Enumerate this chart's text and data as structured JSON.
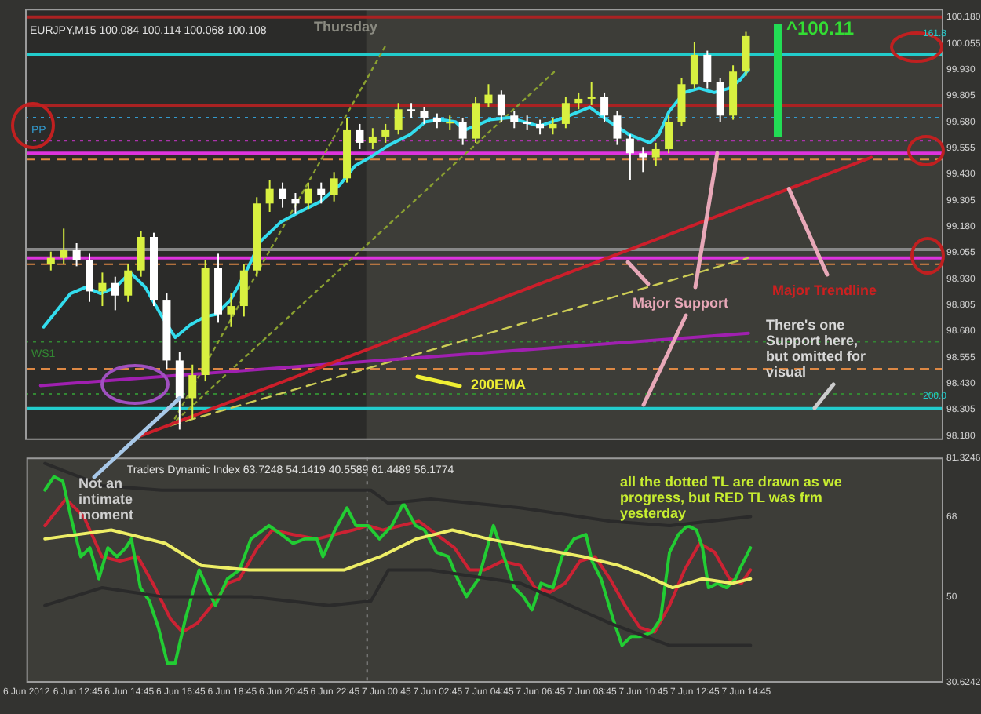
{
  "chart_data": [
    {
      "type": "candlestick",
      "title": "EURJPY,M15 100.084 100.114 100.068 100.108",
      "x": [
        "2012-06-06T11:45",
        "2012-06-06T12:15",
        "2012-06-06T12:45",
        "2012-06-06T13:15",
        "2012-06-06T13:45",
        "2012-06-06T14:15",
        "2012-06-06T14:45",
        "2012-06-06T15:15",
        "2012-06-06T15:45",
        "2012-06-06T16:15",
        "2012-06-06T16:45",
        "2012-06-06T17:15",
        "2012-06-06T17:45",
        "2012-06-06T18:15",
        "2012-06-06T18:45",
        "2012-06-06T19:15",
        "2012-06-06T19:45",
        "2012-06-06T20:15",
        "2012-06-06T20:45",
        "2012-06-06T21:15",
        "2012-06-06T21:45",
        "2012-06-06T22:15",
        "2012-06-06T22:45",
        "2012-06-06T23:15",
        "2012-06-06T23:45",
        "2012-06-07T00:15",
        "2012-06-07T00:45",
        "2012-06-07T01:15",
        "2012-06-07T01:45",
        "2012-06-07T02:15",
        "2012-06-07T02:45",
        "2012-06-07T03:15",
        "2012-06-07T03:45",
        "2012-06-07T04:15",
        "2012-06-07T04:45",
        "2012-06-07T05:15",
        "2012-06-07T05:45",
        "2012-06-07T06:15",
        "2012-06-07T06:45",
        "2012-06-07T07:15",
        "2012-06-07T07:45",
        "2012-06-07T08:15",
        "2012-06-07T08:45",
        "2012-06-07T09:15",
        "2012-06-07T09:45",
        "2012-06-07T10:15",
        "2012-06-07T10:45",
        "2012-06-07T11:15",
        "2012-06-07T11:45",
        "2012-06-07T12:15",
        "2012-06-07T12:45",
        "2012-06-07T13:15",
        "2012-06-07T13:45",
        "2012-06-07T14:15",
        "2012-06-07T14:45"
      ],
      "ohlc": [
        [
          99.0,
          99.06,
          98.97,
          99.03
        ],
        [
          99.03,
          99.17,
          99.0,
          99.07
        ],
        [
          99.07,
          99.1,
          98.99,
          99.02
        ],
        [
          99.02,
          99.05,
          98.82,
          98.87
        ],
        [
          98.87,
          98.96,
          98.8,
          98.91
        ],
        [
          98.91,
          98.94,
          98.78,
          98.85
        ],
        [
          98.85,
          99.0,
          98.82,
          98.97
        ],
        [
          98.97,
          99.16,
          98.94,
          99.13
        ],
        [
          99.13,
          99.15,
          98.8,
          98.83
        ],
        [
          98.83,
          98.86,
          98.5,
          98.54
        ],
        [
          98.54,
          98.58,
          98.21,
          98.36
        ],
        [
          98.36,
          98.52,
          98.26,
          98.47
        ],
        [
          98.47,
          99.02,
          98.44,
          98.98
        ],
        [
          98.98,
          99.05,
          98.72,
          98.76
        ],
        [
          98.76,
          98.86,
          98.7,
          98.8
        ],
        [
          98.8,
          99.0,
          98.75,
          98.97
        ],
        [
          98.97,
          99.32,
          98.94,
          99.29
        ],
        [
          99.29,
          99.4,
          99.25,
          99.36
        ],
        [
          99.36,
          99.39,
          99.27,
          99.31
        ],
        [
          99.31,
          99.34,
          99.24,
          99.29
        ],
        [
          99.29,
          99.39,
          99.26,
          99.36
        ],
        [
          99.36,
          99.39,
          99.29,
          99.33
        ],
        [
          99.33,
          99.44,
          99.3,
          99.41
        ],
        [
          99.41,
          99.7,
          99.39,
          99.64
        ],
        [
          99.64,
          99.67,
          99.55,
          99.58
        ],
        [
          99.58,
          99.65,
          99.55,
          99.61
        ],
        [
          99.61,
          99.67,
          99.58,
          99.64
        ],
        [
          99.64,
          99.77,
          99.62,
          99.74
        ],
        [
          99.74,
          99.77,
          99.7,
          99.73
        ],
        [
          99.73,
          99.75,
          99.67,
          99.7
        ],
        [
          99.7,
          99.72,
          99.65,
          99.68
        ],
        [
          99.68,
          99.71,
          99.64,
          99.68
        ],
        [
          99.68,
          99.7,
          99.57,
          99.6
        ],
        [
          99.6,
          99.8,
          99.58,
          99.77
        ],
        [
          99.77,
          99.86,
          99.75,
          99.81
        ],
        [
          99.81,
          99.83,
          99.68,
          99.71
        ],
        [
          99.71,
          99.73,
          99.65,
          99.68
        ],
        [
          99.68,
          99.71,
          99.64,
          99.67
        ],
        [
          99.67,
          99.69,
          99.62,
          99.65
        ],
        [
          99.65,
          99.7,
          99.62,
          99.67
        ],
        [
          99.67,
          99.8,
          99.65,
          99.77
        ],
        [
          99.77,
          99.82,
          99.74,
          99.79
        ],
        [
          99.79,
          99.87,
          99.76,
          99.8
        ],
        [
          99.8,
          99.82,
          99.68,
          99.71
        ],
        [
          99.71,
          99.73,
          99.57,
          99.6
        ],
        [
          99.6,
          99.62,
          99.4,
          99.53
        ],
        [
          99.53,
          99.56,
          99.44,
          99.51
        ],
        [
          99.51,
          99.58,
          99.47,
          99.55
        ],
        [
          99.55,
          99.71,
          99.53,
          99.68
        ],
        [
          99.68,
          99.89,
          99.66,
          99.86
        ],
        [
          99.86,
          100.06,
          99.84,
          100.0
        ],
        [
          100.0,
          100.02,
          99.84,
          99.87
        ],
        [
          99.87,
          99.89,
          99.68,
          99.71
        ],
        [
          99.71,
          99.95,
          99.69,
          99.92
        ],
        [
          99.92,
          100.11,
          99.9,
          100.09
        ]
      ],
      "colors": [
        "#d8f040",
        "#d8f040",
        "#ffffff",
        "#ffffff",
        "#d8f040",
        "#ffffff",
        "#d8f040",
        "#d8f040",
        "#ffffff",
        "#ffffff",
        "#ffffff",
        "#d8f040",
        "#d8f040",
        "#ffffff",
        "#d8f040",
        "#d8f040",
        "#d8f040",
        "#d8f040",
        "#ffffff",
        "#ffffff",
        "#d8f040",
        "#ffffff",
        "#d8f040",
        "#d8f040",
        "#ffffff",
        "#d8f040",
        "#d8f040",
        "#d8f040",
        "#ffffff",
        "#ffffff",
        "#ffffff",
        "#d8f040",
        "#ffffff",
        "#d8f040",
        "#d8f040",
        "#ffffff",
        "#ffffff",
        "#ffffff",
        "#ffffff",
        "#d8f040",
        "#d8f040",
        "#d8f040",
        "#d8f040",
        "#ffffff",
        "#ffffff",
        "#ffffff",
        "#ffffff",
        "#d8f040",
        "#d8f040",
        "#d8f040",
        "#d8f040",
        "#ffffff",
        "#ffffff",
        "#d8f040",
        "#d8f040"
      ],
      "series": [
        {
          "type": "line",
          "color": "#33ddee",
          "x": [
            "2012-06-06T11:28",
            "2012-06-06T12:31",
            "2012-06-06T13:06",
            "2012-06-06T13:41",
            "2012-06-06T14:16",
            "2012-06-06T14:50",
            "2012-06-06T15:25",
            "2012-06-06T16:01",
            "2012-06-06T16:35",
            "2012-06-06T17:10",
            "2012-06-06T17:45",
            "2012-06-06T18:10",
            "2012-06-06T18:44",
            "2012-06-06T19:19",
            "2012-06-06T19:54",
            "2012-06-06T20:40",
            "2012-06-06T21:25",
            "2012-06-06T22:14",
            "2012-06-06T22:59",
            "2012-06-06T23:34",
            "2012-06-07T00:09",
            "2012-06-07T00:54",
            "2012-06-07T01:43",
            "2012-06-07T02:18",
            "2012-06-07T02:53",
            "2012-06-07T03:28",
            "2012-06-07T03:49",
            "2012-06-07T04:13",
            "2012-06-07T04:48",
            "2012-06-07T05:33",
            "2012-06-07T06:43",
            "2012-06-07T07:42",
            "2012-06-07T08:41",
            "2012-06-07T09:27",
            "2012-06-07T10:12",
            "2012-06-07T11:01",
            "2012-06-07T11:22",
            "2012-06-07T11:46",
            "2012-06-07T12:21",
            "2012-06-07T12:56",
            "2012-06-07T13:31",
            "2012-06-07T14:06",
            "2012-06-07T14:31",
            "2012-06-07T14:51"
          ],
          "values": [
            98.7,
            98.86,
            98.89,
            98.86,
            98.89,
            98.96,
            98.89,
            98.76,
            98.65,
            98.71,
            98.75,
            98.76,
            98.83,
            98.96,
            99.11,
            99.2,
            99.25,
            99.3,
            99.38,
            99.47,
            99.51,
            99.57,
            99.62,
            99.68,
            99.69,
            99.68,
            99.64,
            99.66,
            99.69,
            99.7,
            99.66,
            99.7,
            99.75,
            99.68,
            99.62,
            99.58,
            99.62,
            99.73,
            99.82,
            99.84,
            99.82,
            99.84,
            99.88,
            99.93
          ]
        },
        {
          "type": "line",
          "color": "#cc1e2a",
          "x": [
            "2012-06-06T15:15",
            "2012-06-07T19:37"
          ],
          "values": [
            98.18,
            99.51
          ]
        },
        {
          "type": "line",
          "color": "#a020b0",
          "x": [
            "2012-06-06T11:21",
            "2012-06-07T14:51"
          ],
          "values": [
            98.42,
            98.67
          ]
        },
        {
          "type": "line",
          "color": "#8aa030",
          "line_style": "dotted",
          "x": [
            "2012-06-06T16:25",
            "2012-06-07T00:44"
          ],
          "values": [
            98.23,
            100.04
          ]
        },
        {
          "type": "line",
          "color": "#8aa030",
          "line_style": "dotted",
          "x": [
            "2012-06-06T16:25",
            "2012-06-07T07:19"
          ],
          "values": [
            98.23,
            99.92
          ]
        },
        {
          "type": "line",
          "color": "#cccc55",
          "line_style": "dashed",
          "x": [
            "2012-06-06T16:25",
            "2012-06-07T14:51"
          ],
          "values": [
            98.23,
            99.03
          ]
        }
      ],
      "xlim": [
        "2012-06-06T10:45",
        "2012-06-07T22:25"
      ],
      "ylim": [
        98.16,
        100.22
      ],
      "yticks": [
        {
          "value": 100.18,
          "label": "100.180"
        },
        {
          "value": 100.055,
          "label": "100.055"
        },
        {
          "value": 99.93,
          "label": "99.930"
        },
        {
          "value": 99.805,
          "label": "99.805"
        },
        {
          "value": 99.68,
          "label": "99.680"
        },
        {
          "value": 99.555,
          "label": "99.555"
        },
        {
          "value": 99.43,
          "label": "99.430"
        },
        {
          "value": 99.305,
          "label": "99.305"
        },
        {
          "value": 99.18,
          "label": "99.180"
        },
        {
          "value": 99.055,
          "label": "99.055"
        },
        {
          "value": 98.93,
          "label": "98.930"
        },
        {
          "value": 98.805,
          "label": "98.805"
        },
        {
          "value": 98.68,
          "label": "98.680"
        },
        {
          "value": 98.555,
          "label": "98.555"
        },
        {
          "value": 98.43,
          "label": "98.430"
        },
        {
          "value": 98.305,
          "label": "98.305"
        },
        {
          "value": 98.18,
          "label": "98.180"
        }
      ],
      "tick_labels": "y",
      "grid": false,
      "legend": false,
      "bands": [
        {
          "axis": "x",
          "from": "2012-06-06T10:45",
          "to": "2012-06-07T00:00",
          "color": "#2b2b29"
        }
      ],
      "ref_lines": [
        {
          "axis": "y",
          "value": 100.18,
          "color": "#aa2222",
          "line_style": "solid"
        },
        {
          "axis": "y",
          "value": 100.0,
          "color": "#22cccc",
          "line_style": "solid"
        },
        {
          "axis": "y",
          "value": 99.76,
          "color": "#aa2222",
          "line_style": "solid"
        },
        {
          "axis": "y",
          "value": 99.7,
          "color": "#3399cc",
          "line_style": "dotted",
          "label": "PP"
        },
        {
          "axis": "y",
          "value": 99.59,
          "color": "#aa33aa",
          "line_style": "dotted"
        },
        {
          "axis": "y",
          "value": 99.53,
          "color": "#dd33dd",
          "line_style": "solid"
        },
        {
          "axis": "y",
          "value": 99.5,
          "color": "#dd8844",
          "line_style": "dashed"
        },
        {
          "axis": "y",
          "value": 99.07,
          "color": "#888888",
          "line_style": "solid"
        },
        {
          "axis": "y",
          "value": 99.03,
          "color": "#dd33dd",
          "line_style": "solid"
        },
        {
          "axis": "y",
          "value": 99.0,
          "color": "#dd8844",
          "line_style": "dashed"
        },
        {
          "axis": "y",
          "value": 98.63,
          "color": "#338833",
          "line_style": "dotted",
          "label": "WS1"
        },
        {
          "axis": "y",
          "value": 98.5,
          "color": "#dd8844",
          "line_style": "dashed"
        },
        {
          "axis": "y",
          "value": 98.38,
          "color": "#338833",
          "line_style": "dotted"
        },
        {
          "axis": "y",
          "value": 98.31,
          "color": "#22cccc",
          "line_style": "solid"
        }
      ],
      "annotations": [
        "Thursday",
        "^100.11",
        {
          "text": "Major Support",
          "x": "2012-06-07T13:38",
          "y": 99.53
        },
        {
          "text": "Major Trendline",
          "x": "2012-06-07T16:25",
          "y": 99.36
        },
        "There's one Support here, but omitted for visual",
        "200EMA",
        {
          "text": "Not an intimate moment",
          "x": "2012-06-06T16:45",
          "y": 98.36
        },
        "161.8",
        "200.0"
      ]
    },
    {
      "type": "line",
      "title": "Traders Dynamic Index 63.7248 54.1419 40.5589 61.4489 56.1774",
      "series": [
        {
          "color": "#2a2a2a",
          "x": [
            "2012-06-06T11:28",
            "2012-06-06T13:41",
            "2012-06-06T16:01",
            "2012-06-06T19:29",
            "2012-06-06T22:31",
            "2012-06-07T00:09",
            "2012-06-07T00:50",
            "2012-06-07T02:28",
            "2012-06-07T05:58",
            "2012-06-07T09:27",
            "2012-06-07T11:46",
            "2012-06-07T14:55"
          ],
          "values": [
            80,
            75,
            74,
            74,
            74,
            74,
            71,
            72,
            70,
            67,
            66,
            68
          ]
        },
        {
          "color": "#2a2a2a",
          "x": [
            "2012-06-06T11:28",
            "2012-06-06T13:41",
            "2012-06-06T16:01",
            "2012-06-06T19:29",
            "2012-06-06T22:31",
            "2012-06-07T00:09",
            "2012-06-07T00:50",
            "2012-06-07T02:28",
            "2012-06-07T05:58",
            "2012-06-07T09:27",
            "2012-06-07T11:46",
            "2012-06-07T14:55"
          ],
          "values": [
            48,
            52,
            50,
            50,
            48,
            49,
            56,
            56,
            53,
            44,
            39,
            39
          ]
        },
        {
          "color": "#eeee66",
          "x": [
            "2012-06-06T11:28",
            "2012-06-06T14:03",
            "2012-06-06T16:09",
            "2012-06-06T17:33",
            "2012-06-06T19:25",
            "2012-06-06T21:16",
            "2012-06-06T23:07",
            "2012-06-07T00:31",
            "2012-06-07T01:55",
            "2012-06-07T03:19",
            "2012-06-07T04:43",
            "2012-06-07T06:32",
            "2012-06-07T08:24",
            "2012-06-07T09:48",
            "2012-06-07T10:44",
            "2012-06-07T11:53",
            "2012-06-07T13:03",
            "2012-06-07T14:13",
            "2012-06-07T14:55"
          ],
          "values": [
            63,
            65,
            62,
            57,
            56,
            56,
            56,
            59,
            63,
            65,
            63,
            61,
            59,
            57,
            55,
            52,
            54,
            53,
            54
          ]
        },
        {
          "color": "#22cc33",
          "x": [
            "2012-06-06T11:28",
            "2012-06-06T11:49",
            "2012-06-06T12:10",
            "2012-06-06T12:31",
            "2012-06-06T12:52",
            "2012-06-06T13:13",
            "2012-06-06T13:34",
            "2012-06-06T13:55",
            "2012-06-06T14:16",
            "2012-06-06T14:37",
            "2012-06-06T14:50",
            "2012-06-06T15:11",
            "2012-06-06T15:32",
            "2012-06-06T15:53",
            "2012-06-06T16:14",
            "2012-06-06T16:32",
            "2012-06-06T16:56",
            "2012-06-06T17:28",
            "2012-06-06T18:06",
            "2012-06-06T18:34",
            "2012-06-06T19:02",
            "2012-06-06T19:29",
            "2012-06-06T20:11",
            "2012-06-06T20:40",
            "2012-06-06T21:07",
            "2012-06-06T21:35",
            "2012-06-06T22:03",
            "2012-06-06T22:17",
            "2012-06-06T22:45",
            "2012-06-06T23:13",
            "2012-06-06T23:34",
            "2012-06-07T00:02",
            "2012-06-07T00:29",
            "2012-06-07T00:58",
            "2012-06-07T01:25",
            "2012-06-07T01:53",
            "2012-06-07T02:14",
            "2012-06-07T02:42",
            "2012-06-07T03:10",
            "2012-06-07T03:31",
            "2012-06-07T03:52",
            "2012-06-07T04:20",
            "2012-06-07T04:55",
            "2012-06-07T05:16",
            "2012-06-07T05:44",
            "2012-06-07T06:05",
            "2012-06-07T06:25",
            "2012-06-07T06:46",
            "2012-06-07T07:14",
            "2012-06-07T07:35",
            "2012-06-07T08:03",
            "2012-06-07T08:31",
            "2012-06-07T08:45",
            "2012-06-07T09:06",
            "2012-06-07T09:34",
            "2012-06-07T09:55",
            "2012-06-07T10:16",
            "2012-06-07T10:37",
            "2012-06-07T11:05",
            "2012-06-07T11:25",
            "2012-06-07T11:46",
            "2012-06-07T12:07",
            "2012-06-07T12:28",
            "2012-06-07T12:49",
            "2012-06-07T13:03",
            "2012-06-07T13:17",
            "2012-06-07T13:38",
            "2012-06-07T13:59",
            "2012-06-07T14:20",
            "2012-06-07T14:34",
            "2012-06-07T14:55"
          ],
          "values": [
            74,
            77,
            76,
            67,
            59,
            61,
            54,
            61,
            59,
            61,
            63,
            52,
            49,
            43,
            35,
            35,
            45,
            56,
            48,
            54,
            56,
            63,
            66,
            64,
            62,
            63,
            63,
            59,
            65,
            70,
            66,
            66,
            63,
            66,
            71,
            66,
            65,
            60,
            59,
            54,
            50,
            54,
            66,
            60,
            52,
            50,
            47,
            53,
            52,
            59,
            63,
            64,
            58,
            54,
            45,
            39,
            41,
            41,
            42,
            45,
            60,
            64,
            66,
            65,
            61,
            52,
            53,
            52,
            54,
            57,
            61
          ]
        },
        {
          "color": "#cc2233",
          "x": [
            "2012-06-06T11:28",
            "2012-06-06T12:17",
            "2012-06-06T12:59",
            "2012-06-06T13:41",
            "2012-06-06T14:23",
            "2012-06-06T15:05",
            "2012-06-06T15:40",
            "2012-06-06T16:21",
            "2012-06-06T16:49",
            "2012-06-06T17:24",
            "2012-06-06T18:06",
            "2012-06-06T18:34",
            "2012-06-06T19:02",
            "2012-06-06T19:44",
            "2012-06-06T20:19",
            "2012-06-06T21:07",
            "2012-06-06T22:03",
            "2012-06-06T22:45",
            "2012-06-06T23:27",
            "2012-06-07T00:02",
            "2012-06-07T00:37",
            "2012-06-07T01:19",
            "2012-06-07T02:01",
            "2012-06-07T02:42",
            "2012-06-07T03:24",
            "2012-06-07T03:59",
            "2012-06-07T04:34",
            "2012-06-07T05:16",
            "2012-06-07T05:58",
            "2012-06-07T06:32",
            "2012-06-07T07:07",
            "2012-06-07T07:42",
            "2012-06-07T08:17",
            "2012-06-07T08:52",
            "2012-06-07T09:27",
            "2012-06-07T10:02",
            "2012-06-07T10:37",
            "2012-06-07T11:11",
            "2012-06-07T11:46",
            "2012-06-07T12:21",
            "2012-06-07T12:56",
            "2012-06-07T13:31",
            "2012-06-07T14:06",
            "2012-06-07T14:34",
            "2012-06-07T14:55"
          ],
          "values": [
            66,
            72,
            68,
            59,
            58,
            59,
            53,
            45,
            42,
            44,
            49,
            53,
            54,
            61,
            65,
            64,
            63,
            64,
            65,
            66,
            65,
            66,
            67,
            64,
            61,
            56,
            56,
            58,
            57,
            52,
            51,
            53,
            58,
            59,
            54,
            48,
            43,
            42,
            48,
            56,
            62,
            60,
            54,
            53,
            56
          ]
        }
      ],
      "xlim": [
        "2012-06-06T10:45",
        "2012-06-07T22:25"
      ],
      "ylim": [
        30.6242,
        81.3246
      ],
      "yticks": [
        81.3246,
        68,
        50,
        30.6242
      ],
      "xticks": [
        {
          "value": "2012-06-06T10:45",
          "label": "6 Jun 2012"
        },
        {
          "value": "2012-06-06T12:45",
          "label": "6 Jun 12:45"
        },
        {
          "value": "2012-06-06T14:45",
          "label": "6 Jun 14:45"
        },
        {
          "value": "2012-06-06T16:45",
          "label": "6 Jun 16:45"
        },
        {
          "value": "2012-06-06T18:45",
          "label": "6 Jun 18:45"
        },
        {
          "value": "2012-06-06T20:45",
          "label": "6 Jun 20:45"
        },
        {
          "value": "2012-06-06T22:45",
          "label": "6 Jun 22:45"
        },
        {
          "value": "2012-06-07T00:45",
          "label": "7 Jun 00:45"
        },
        {
          "value": "2012-06-07T02:45",
          "label": "7 Jun 02:45"
        },
        {
          "value": "2012-06-07T04:45",
          "label": "7 Jun 04:45"
        },
        {
          "value": "2012-06-07T06:45",
          "label": "7 Jun 06:45"
        },
        {
          "value": "2012-06-07T08:45",
          "label": "7 Jun 08:45"
        },
        {
          "value": "2012-06-07T10:45",
          "label": "7 Jun 10:45"
        },
        {
          "value": "2012-06-07T12:45",
          "label": "7 Jun 12:45"
        },
        {
          "value": "2012-06-07T14:45",
          "label": "7 Jun 14:45"
        }
      ],
      "grid": false,
      "legend": false,
      "ref_lines": [
        {
          "axis": "x",
          "value": "2012-06-07T00:00",
          "color": "#8a8a8a",
          "line_style": "dotted"
        }
      ],
      "annotations": [
        "all the dotted TL are drawn as we progress, but RED TL was frm yesterday"
      ]
    }
  ]
}
